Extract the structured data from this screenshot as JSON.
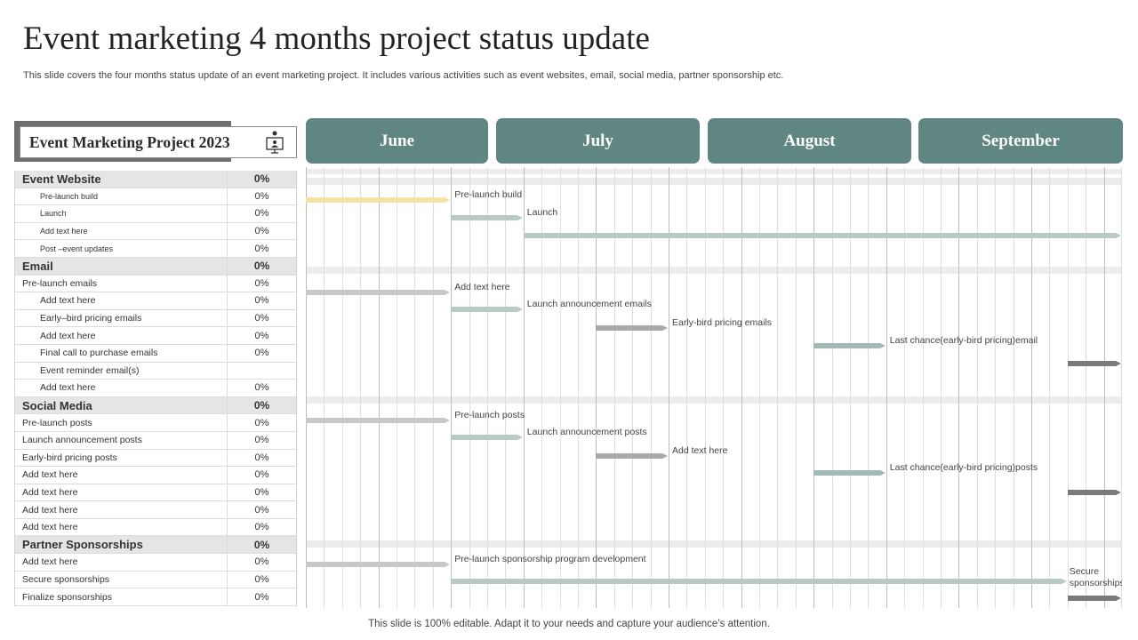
{
  "title": "Event marketing 4 months project status update",
  "subtitle": "This slide covers the four months status update of an event marketing project. It includes various activities such as event websites, email, social media, partner sponsorship etc.",
  "footer": "This slide is 100% editable. Adapt it to your needs and capture your audience’s attention.",
  "project": {
    "title": "Event Marketing Project 2023",
    "icon": "presentation-screen-icon"
  },
  "months": [
    "June",
    "July",
    "August",
    "September"
  ],
  "table": [
    {
      "name": "Event Website",
      "pct": "0%",
      "type": "sec"
    },
    {
      "name": "Pre-launch build",
      "pct": "0%",
      "type": "ind sm"
    },
    {
      "name": "Launch",
      "pct": "0%",
      "type": "ind sm"
    },
    {
      "name": "Add text here",
      "pct": "0%",
      "type": "ind sm"
    },
    {
      "name": "Post –event updates",
      "pct": "0%",
      "type": "ind sm"
    },
    {
      "name": "Email",
      "pct": "0%",
      "type": "sec"
    },
    {
      "name": "Pre-launch emails",
      "pct": "0%",
      "type": ""
    },
    {
      "name": "Add text here",
      "pct": "0%",
      "type": "ind"
    },
    {
      "name": "Early–bird pricing emails",
      "pct": "0%",
      "type": "ind"
    },
    {
      "name": "Add text here",
      "pct": "0%",
      "type": "ind"
    },
    {
      "name": "Final call to purchase emails",
      "pct": "0%",
      "type": "ind"
    },
    {
      "name": "Event reminder email(s)",
      "pct": "",
      "type": "ind"
    },
    {
      "name": "Add text here",
      "pct": "0%",
      "type": "ind"
    },
    {
      "name": "Social Media",
      "pct": "0%",
      "type": "sec"
    },
    {
      "name": "Pre-launch posts",
      "pct": "0%",
      "type": ""
    },
    {
      "name": "Launch announcement posts",
      "pct": "0%",
      "type": ""
    },
    {
      "name": "Early-bird pricing posts",
      "pct": "0%",
      "type": ""
    },
    {
      "name": "Add text here",
      "pct": "0%",
      "type": ""
    },
    {
      "name": "Add text here",
      "pct": "0%",
      "type": ""
    },
    {
      "name": "Add text here",
      "pct": "0%",
      "type": ""
    },
    {
      "name": "Add text here",
      "pct": "0%",
      "type": ""
    },
    {
      "name": "Partner Sponsorships",
      "pct": "0%",
      "type": "sec"
    },
    {
      "name": "Add text here",
      "pct": "0%",
      "type": ""
    },
    {
      "name": "Secure sponsorships",
      "pct": "0%",
      "type": ""
    },
    {
      "name": "Finalize sponsorships",
      "pct": "0%",
      "type": ""
    }
  ],
  "tasks": [
    {
      "label": "Pre-launch build",
      "start_week": 0,
      "end_week": 8,
      "color": "#f3e3a6"
    },
    {
      "label": "Launch",
      "start_week": 8,
      "end_week": 12,
      "color": "#b8c9c6"
    },
    {
      "label": "",
      "start_week": 12,
      "end_week": 45,
      "color": "#b8c9c6"
    },
    {
      "label": "Add text here",
      "start_week": 0,
      "end_week": 8,
      "color": "#c8c8c8"
    },
    {
      "label": "Launch announcement emails",
      "start_week": 8,
      "end_week": 12,
      "color": "#b8c9c6"
    },
    {
      "label": "Early-bird pricing emails",
      "start_week": 16,
      "end_week": 20,
      "color": "#a9a9a9"
    },
    {
      "label": "Last chance(early-bird pricing)email",
      "start_week": 28,
      "end_week": 32,
      "color": "#a2b9b5"
    },
    {
      "label": "",
      "start_week": 42,
      "end_week": 45,
      "color": "#7a7a7a"
    },
    {
      "label": "Pre-launch posts",
      "start_week": 0,
      "end_week": 8,
      "color": "#c8c8c8"
    },
    {
      "label": "Launch announcement posts",
      "start_week": 8,
      "end_week": 12,
      "color": "#b8c9c6"
    },
    {
      "label": "Add text here",
      "start_week": 16,
      "end_week": 20,
      "color": "#a9a9a9"
    },
    {
      "label": "Last chance(early-bird pricing)posts",
      "start_week": 28,
      "end_week": 32,
      "color": "#a2b9b5"
    },
    {
      "label": "",
      "start_week": 42,
      "end_week": 45,
      "color": "#7a7a7a"
    },
    {
      "label": "Pre-launch sponsorship program development",
      "start_week": 0,
      "end_week": 8,
      "color": "#c8c8c8"
    },
    {
      "label": "Secure sponsorships",
      "start_week": 8,
      "end_week": 42,
      "color": "#b8c9c6"
    },
    {
      "label": "",
      "start_week": 42,
      "end_week": 45,
      "color": "#7a7a7a"
    }
  ],
  "colors": {
    "month_header": "#5f8680",
    "section_row": "#e5e5e5"
  }
}
